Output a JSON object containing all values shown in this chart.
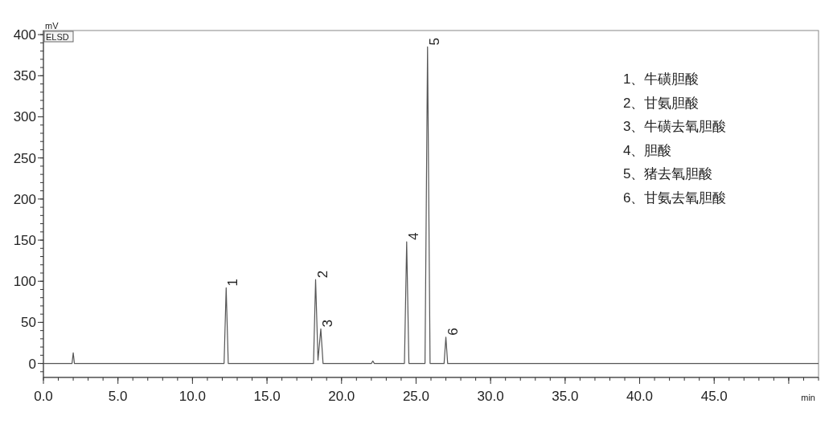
{
  "chart_data": {
    "type": "line",
    "xlabel": "min",
    "ylabel": "mV",
    "x": [
      0,
      1.92,
      2.0,
      2.08,
      12.12,
      12.26,
      12.4,
      18.12,
      18.26,
      18.42,
      18.61,
      18.76,
      22.0,
      22.1,
      22.2,
      24.22,
      24.37,
      24.52,
      25.6,
      25.77,
      25.94,
      26.88,
      27.0,
      27.12,
      52
    ],
    "series": [
      {
        "color": "#555555",
        "values": [
          0,
          0,
          13,
          0,
          0,
          92,
          0,
          0,
          102,
          4,
          42,
          0,
          0,
          3,
          0,
          0,
          148,
          0,
          0,
          385,
          0,
          0,
          32,
          0,
          0
        ]
      }
    ],
    "xlim": [
      0,
      52
    ],
    "xticks": [
      {
        "value": 0,
        "label": "0.0"
      },
      {
        "value": 5,
        "label": "5.0"
      },
      {
        "value": 10,
        "label": "10.0"
      },
      {
        "value": 15,
        "label": "15.0"
      },
      {
        "value": 20,
        "label": "20.0"
      },
      {
        "value": 25,
        "label": "25.0"
      },
      {
        "value": 30,
        "label": "30.0"
      },
      {
        "value": 35,
        "label": "35.0"
      },
      {
        "value": 40,
        "label": "40.0"
      },
      {
        "value": 45,
        "label": "45.0"
      },
      {
        "value": 50,
        "label": null
      }
    ],
    "ylim": [
      -17,
      405
    ],
    "yticks": [
      0,
      50,
      100,
      150,
      200,
      250,
      300,
      350,
      400
    ],
    "grid": false,
    "marker": "none",
    "line_style": "solid",
    "annotations": [
      {
        "text": "1",
        "x": 12.26,
        "y": 92
      },
      {
        "text": "2",
        "x": 18.26,
        "y": 102
      },
      {
        "text": "3",
        "x": 18.61,
        "y": 42
      },
      {
        "text": "4",
        "x": 24.37,
        "y": 148
      },
      {
        "text": "5",
        "x": 25.77,
        "y": 385
      },
      {
        "text": "6",
        "x": 27.0,
        "y": 32
      },
      "ELSD",
      "1、牛磺胆酸",
      "2、甘氨胆酸",
      "3、牛磺去氧胆酸",
      "4、胆酸",
      "5、猪去氧胆酸",
      "6、甘氨去氧胆酸"
    ]
  }
}
